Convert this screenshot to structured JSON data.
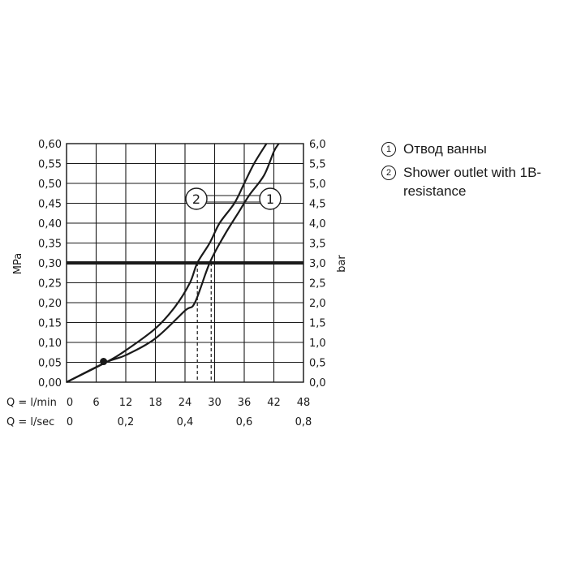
{
  "chart_data": {
    "type": "line",
    "y_left_label": "MPa",
    "y_right_label": "bar",
    "y_left_ticks": [
      "0,00",
      "0,05",
      "0,10",
      "0,15",
      "0,20",
      "0,25",
      "0,30",
      "0,35",
      "0,40",
      "0,45",
      "0,50",
      "0,55",
      "0,60"
    ],
    "y_right_ticks": [
      "0,0",
      "0,5",
      "1,0",
      "1,5",
      "2,0",
      "2,5",
      "3,0",
      "3,5",
      "4,0",
      "4,5",
      "5,0",
      "5,5",
      "6,0"
    ],
    "x_rows": [
      {
        "label": "Q = l/min",
        "ticks": [
          "0",
          "6",
          "12",
          "18",
          "24",
          "30",
          "36",
          "42",
          "48"
        ]
      },
      {
        "label": "Q = l/sec",
        "ticks": [
          "0",
          "0,2",
          "0,4",
          "0,6",
          "0,8"
        ]
      }
    ],
    "xlim": [
      0,
      48
    ],
    "ylim": [
      0,
      0.6
    ],
    "grid": true,
    "reference_line": {
      "y": 0.3
    },
    "series": [
      {
        "marker": "1",
        "points": [
          [
            0,
            0
          ],
          [
            8,
            0.05
          ],
          [
            12,
            0.068
          ],
          [
            18,
            0.11
          ],
          [
            24,
            0.18
          ],
          [
            26,
            0.2
          ],
          [
            29,
            0.3
          ],
          [
            32,
            0.37
          ],
          [
            35,
            0.43
          ],
          [
            37,
            0.47
          ],
          [
            40,
            0.52
          ],
          [
            42,
            0.58
          ],
          [
            43,
            0.6
          ]
        ]
      },
      {
        "marker": "2",
        "points": [
          [
            0,
            0
          ],
          [
            8,
            0.05
          ],
          [
            12,
            0.08
          ],
          [
            18,
            0.135
          ],
          [
            22,
            0.19
          ],
          [
            25,
            0.25
          ],
          [
            26.5,
            0.3
          ],
          [
            29,
            0.35
          ],
          [
            31,
            0.4
          ],
          [
            34,
            0.45
          ],
          [
            36,
            0.5
          ],
          [
            38,
            0.55
          ],
          [
            40.5,
            0.6
          ]
        ]
      }
    ],
    "drop_lines": [
      {
        "series_marker": "2",
        "x": 26.5,
        "y": 0.3
      },
      {
        "series_marker": "1",
        "x": 29.3,
        "y": 0.3
      }
    ],
    "point_marker": {
      "x": 7.5,
      "y": 0.052
    },
    "callout_markers": [
      "2",
      "1"
    ]
  },
  "legend": [
    {
      "num": "1",
      "text": "Отвод ванны"
    },
    {
      "num": "2",
      "text": "Shower outlet with 1B-resistance"
    }
  ]
}
